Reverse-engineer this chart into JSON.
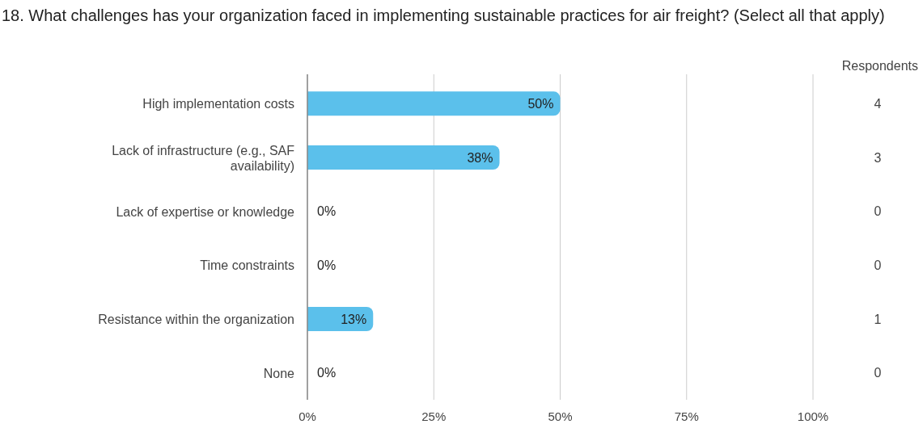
{
  "chart_data": {
    "type": "bar",
    "orientation": "horizontal",
    "title": "18. What challenges has your organization faced in implementing sustainable practices for air freight? (Select all that apply)",
    "categories": [
      "High implementation costs",
      "Lack of infrastructure (e.g., SAF availability)",
      "Lack of expertise or knowledge",
      "Time constraints",
      "Resistance within the organization",
      "None"
    ],
    "values": [
      50,
      38,
      0,
      0,
      13,
      0
    ],
    "value_labels": [
      "50%",
      "38%",
      "0%",
      "0%",
      "13%",
      "0%"
    ],
    "color": "#5bc0eb",
    "xlim": [
      0,
      100
    ],
    "xticks": [
      {
        "value": 0,
        "label": "0%"
      },
      {
        "value": 25,
        "label": "25%"
      },
      {
        "value": 50,
        "label": "50%"
      },
      {
        "value": 75,
        "label": "75%"
      },
      {
        "value": 100,
        "label": "100%"
      }
    ],
    "grid": "x",
    "annotations": [
      "Respondents",
      "4",
      "3",
      "0",
      "0",
      "1",
      "0"
    ]
  }
}
